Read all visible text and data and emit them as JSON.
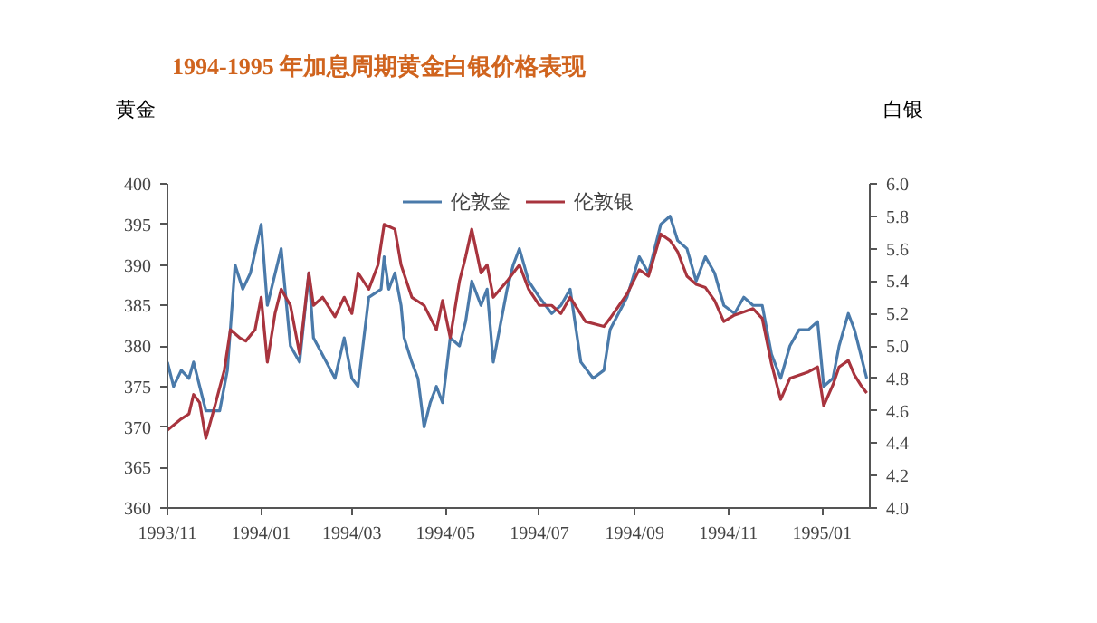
{
  "chart_data": {
    "type": "line",
    "title": "1994-1995 年加息周期黄金白银价格表现",
    "ylabel": "黄金",
    "y2label": "白银",
    "xlim": [
      "1993-11-01",
      "1995-02-01"
    ],
    "xticks": [
      {
        "value": "1993-11-01",
        "label": "1993/11"
      },
      {
        "value": "1994-01-01",
        "label": "1994/01"
      },
      {
        "value": "1994-03-01",
        "label": "1994/03"
      },
      {
        "value": "1994-05-01",
        "label": "1994/05"
      },
      {
        "value": "1994-07-01",
        "label": "1994/07"
      },
      {
        "value": "1994-09-01",
        "label": "1994/09"
      },
      {
        "value": "1994-11-01",
        "label": "1994/11"
      },
      {
        "value": "1995-01-01",
        "label": "1995/01"
      }
    ],
    "ylim": [
      360,
      400
    ],
    "yticks": [
      360,
      365,
      370,
      375,
      380,
      385,
      390,
      395,
      400
    ],
    "y2lim": [
      4.0,
      6.0
    ],
    "y2ticks": [
      {
        "value": 4.0,
        "label": "4.0"
      },
      4.2,
      4.4,
      4.6,
      4.8,
      {
        "value": 5.0,
        "label": "5.0"
      },
      5.2,
      5.4,
      5.6,
      5.8,
      {
        "value": 6.0,
        "label": "6.0"
      }
    ],
    "legend": "top",
    "grid": false,
    "line_style": "solid",
    "series": [
      {
        "name": "伦敦金",
        "color": "#4a7aaa",
        "x": [
          "1993-11-01",
          "1993-11-05",
          "1993-11-10",
          "1993-11-15",
          "1993-11-18",
          "1993-11-22",
          "1993-11-26",
          "1993-12-05",
          "1993-12-10",
          "1993-12-15",
          "1993-12-20",
          "1993-12-25",
          "1994-01-01",
          "1994-01-05",
          "1994-01-14",
          "1994-01-20",
          "1994-01-26",
          "1994-02-01",
          "1994-02-04",
          "1994-02-18",
          "1994-02-24",
          "1994-03-01",
          "1994-03-05",
          "1994-03-12",
          "1994-03-20",
          "1994-03-22",
          "1994-03-25",
          "1994-03-29",
          "1994-04-02",
          "1994-04-04",
          "1994-04-09",
          "1994-04-13",
          "1994-04-17",
          "1994-04-21",
          "1994-04-25",
          "1994-04-29",
          "1994-05-04",
          "1994-05-10",
          "1994-05-14",
          "1994-05-18",
          "1994-05-24",
          "1994-05-28",
          "1994-06-01",
          "1994-06-06",
          "1994-06-10",
          "1994-06-14",
          "1994-06-18",
          "1994-06-24",
          "1994-07-01",
          "1994-07-09",
          "1994-07-15",
          "1994-07-21",
          "1994-07-28",
          "1994-08-05",
          "1994-08-12",
          "1994-08-16",
          "1994-08-27",
          "1994-09-04",
          "1994-09-10",
          "1994-09-18",
          "1994-09-24",
          "1994-09-29",
          "1994-10-05",
          "1994-10-11",
          "1994-10-17",
          "1994-10-23",
          "1994-10-29",
          "1994-11-05",
          "1994-11-11",
          "1994-11-17",
          "1994-11-23",
          "1994-11-29",
          "1994-12-05",
          "1994-12-11",
          "1994-12-17",
          "1994-12-23",
          "1994-12-29",
          "1995-01-02",
          "1995-01-08",
          "1995-01-12",
          "1995-01-18",
          "1995-01-22",
          "1995-01-26",
          "1995-01-30"
        ],
        "values": [
          378,
          375,
          377,
          376,
          378,
          375,
          372,
          372,
          377,
          390,
          387,
          389,
          395,
          385,
          392,
          380,
          378,
          389,
          381,
          376,
          381,
          376,
          375,
          386,
          387,
          391,
          387,
          389,
          385,
          381,
          378,
          376,
          370,
          373,
          375,
          373,
          381,
          380,
          383,
          388,
          385,
          387,
          378,
          383,
          387,
          390,
          392,
          388,
          386,
          384,
          385,
          387,
          378,
          376,
          377,
          382,
          386,
          391,
          389,
          395,
          396,
          393,
          392,
          388,
          391,
          389,
          385,
          384,
          386,
          385,
          385,
          379,
          376,
          380,
          382,
          382,
          383,
          375,
          376,
          380,
          384,
          382,
          379,
          376
        ]
      },
      {
        "name": "伦敦银",
        "color": "#a8343e",
        "axis": "y2",
        "x": [
          "1993-11-01",
          "1993-11-10",
          "1993-11-15",
          "1993-11-18",
          "1993-11-22",
          "1993-11-26",
          "1993-12-01",
          "1993-12-08",
          "1993-12-12",
          "1993-12-18",
          "1993-12-22",
          "1993-12-28",
          "1994-01-01",
          "1994-01-05",
          "1994-01-10",
          "1994-01-14",
          "1994-01-20",
          "1994-01-26",
          "1994-02-01",
          "1994-02-04",
          "1994-02-10",
          "1994-02-18",
          "1994-02-24",
          "1994-03-01",
          "1994-03-05",
          "1994-03-12",
          "1994-03-18",
          "1994-03-22",
          "1994-03-29",
          "1994-04-02",
          "1994-04-09",
          "1994-04-17",
          "1994-04-25",
          "1994-04-29",
          "1994-05-04",
          "1994-05-10",
          "1994-05-14",
          "1994-05-18",
          "1994-05-24",
          "1994-05-28",
          "1994-06-01",
          "1994-06-10",
          "1994-06-18",
          "1994-06-24",
          "1994-07-01",
          "1994-07-09",
          "1994-07-15",
          "1994-07-21",
          "1994-07-31",
          "1994-08-12",
          "1994-08-16",
          "1994-08-27",
          "1994-09-04",
          "1994-09-10",
          "1994-09-18",
          "1994-09-24",
          "1994-09-29",
          "1994-10-05",
          "1994-10-11",
          "1994-10-17",
          "1994-10-23",
          "1994-10-29",
          "1994-11-05",
          "1994-11-11",
          "1994-11-17",
          "1994-11-23",
          "1994-11-29",
          "1994-12-05",
          "1994-12-11",
          "1994-12-17",
          "1994-12-23",
          "1994-12-29",
          "1995-01-02",
          "1995-01-08",
          "1995-01-12",
          "1995-01-18",
          "1995-01-22",
          "1995-01-26",
          "1995-01-30"
        ],
        "values": [
          4.48,
          4.55,
          4.58,
          4.7,
          4.65,
          4.43,
          4.6,
          4.85,
          5.1,
          5.05,
          5.03,
          5.1,
          5.3,
          4.9,
          5.2,
          5.35,
          5.25,
          4.95,
          5.45,
          5.25,
          5.3,
          5.18,
          5.3,
          5.2,
          5.45,
          5.35,
          5.5,
          5.75,
          5.72,
          5.5,
          5.3,
          5.25,
          5.1,
          5.28,
          5.05,
          5.4,
          5.55,
          5.72,
          5.45,
          5.5,
          5.3,
          5.4,
          5.5,
          5.35,
          5.25,
          5.25,
          5.2,
          5.3,
          5.15,
          5.12,
          5.17,
          5.32,
          5.47,
          5.43,
          5.69,
          5.65,
          5.58,
          5.43,
          5.38,
          5.36,
          5.28,
          5.15,
          5.19,
          5.21,
          5.23,
          5.17,
          4.89,
          4.67,
          4.8,
          4.82,
          4.84,
          4.87,
          4.63,
          4.76,
          4.87,
          4.91,
          4.82,
          4.76,
          4.71
        ]
      }
    ]
  }
}
